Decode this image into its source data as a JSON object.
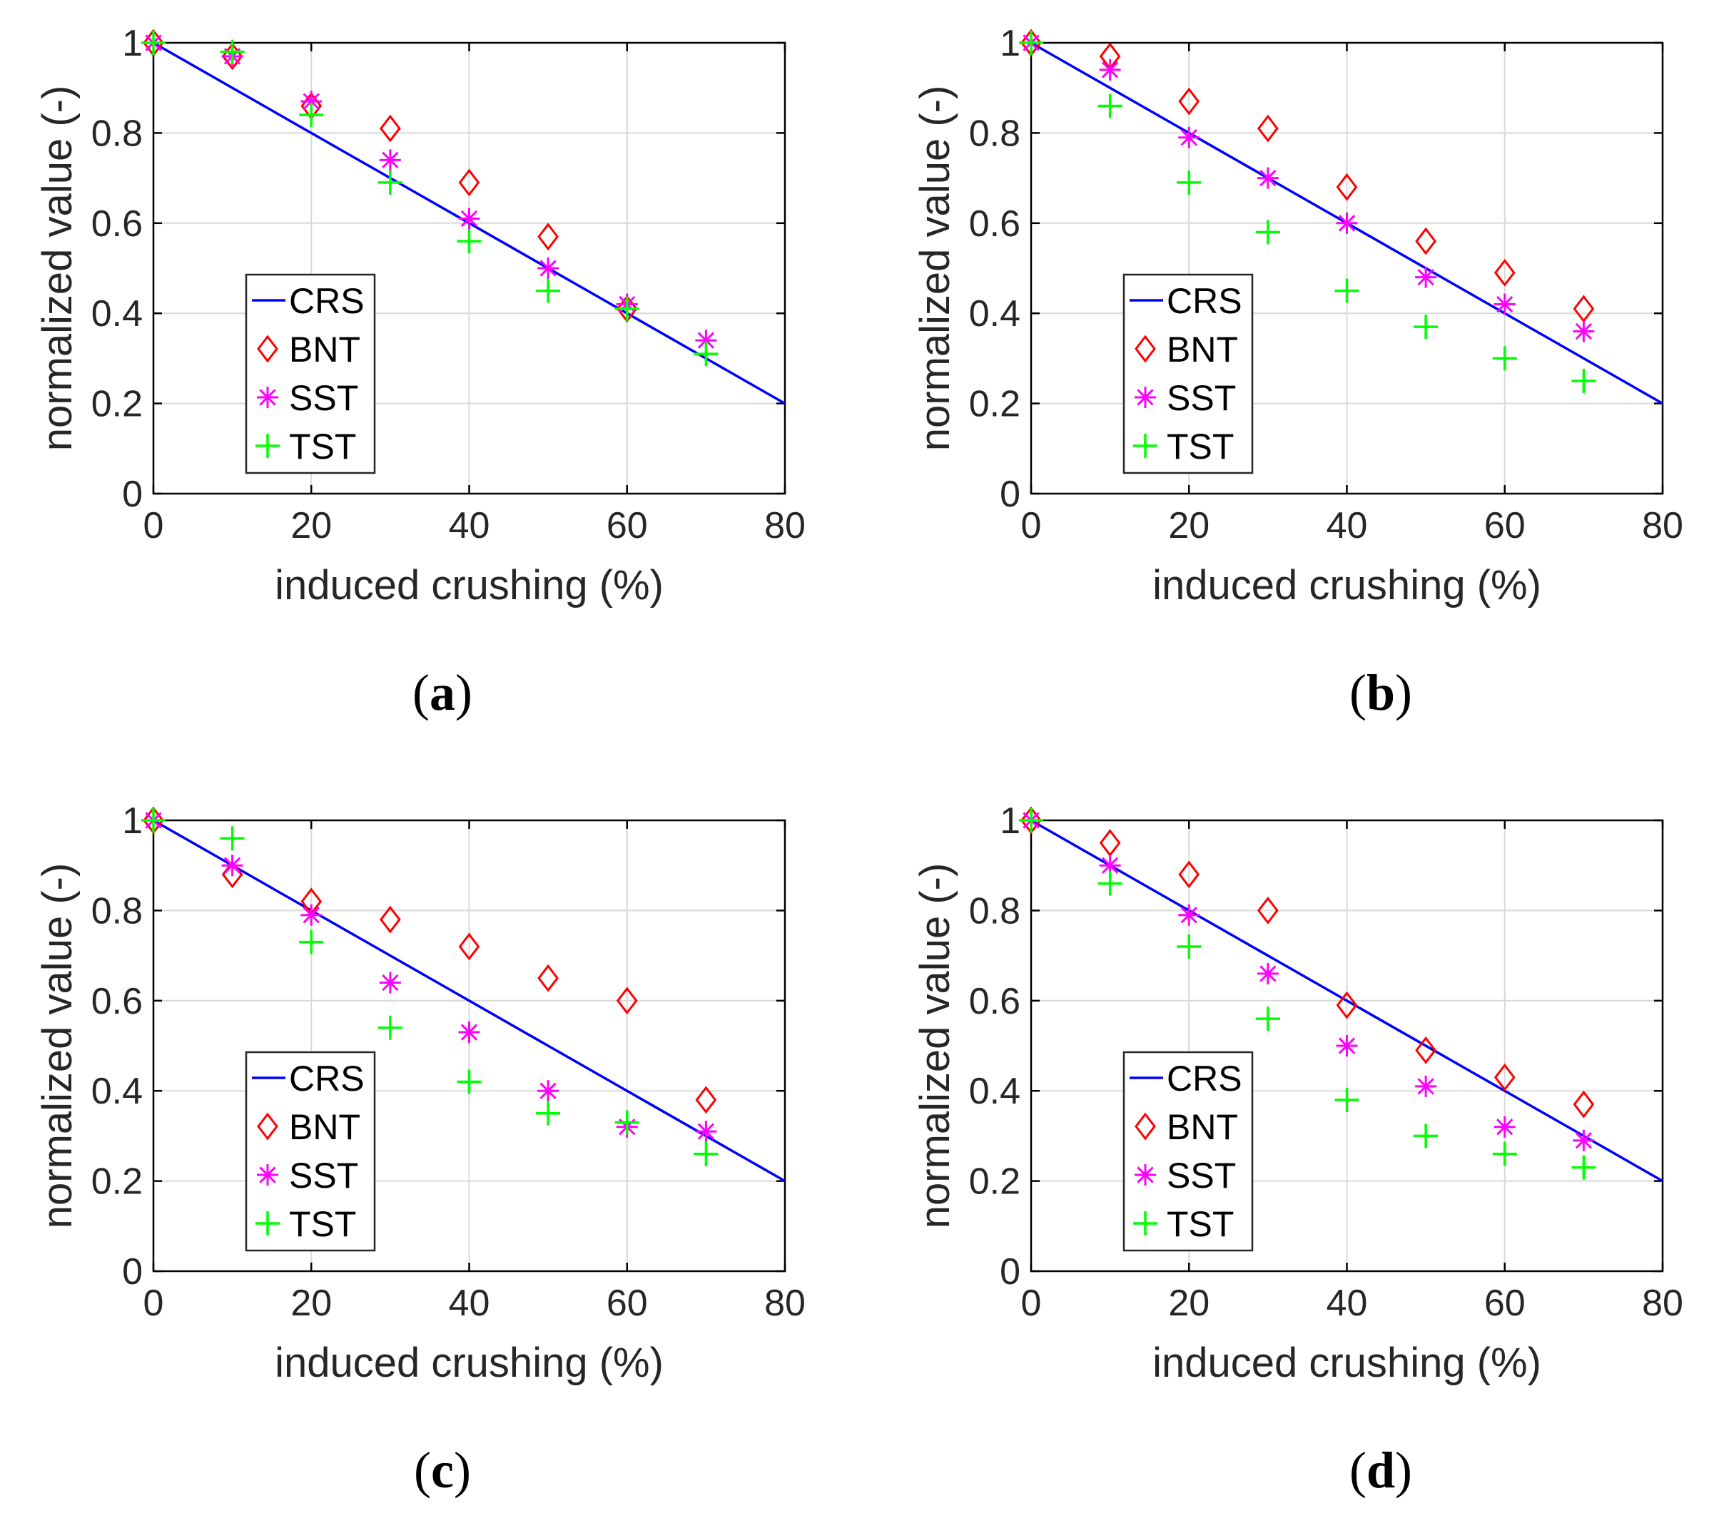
{
  "colors": {
    "CRS": "#0000ff",
    "BNT": "#ff0000",
    "SST": "#ff00ff",
    "TST": "#00ff00",
    "axis": "#000000",
    "grid": "#d9d9d9"
  },
  "legend_symbols": {
    "CRS": "—",
    "BNT": "◇",
    "SST": "✳",
    "TST": "+"
  },
  "chart_data": [
    {
      "id": "a",
      "type": "scatter",
      "label": "a",
      "xlabel": "induced crushing (%)",
      "ylabel": "normalized value (-)",
      "xlim": [
        0,
        80
      ],
      "ylim": [
        0,
        1
      ],
      "xticks": [
        0,
        20,
        40,
        60,
        80
      ],
      "yticks": [
        0,
        0.2,
        0.4,
        0.6,
        0.8,
        1
      ],
      "ytick_labels": [
        "0",
        "0.2",
        "0.4",
        "0.6",
        "0.8",
        "1"
      ],
      "grid": true,
      "legend_position": "lower-left",
      "series": [
        {
          "name": "CRS",
          "style": "line",
          "x": [
            0,
            80
          ],
          "y": [
            1,
            0.2
          ]
        },
        {
          "name": "BNT",
          "style": "diamond",
          "x": [
            0,
            10,
            20,
            30,
            40,
            50,
            60
          ],
          "y": [
            1.0,
            0.97,
            0.86,
            0.81,
            0.69,
            0.57,
            0.41
          ]
        },
        {
          "name": "SST",
          "style": "asterisk",
          "x": [
            0,
            10,
            20,
            30,
            40,
            50,
            60,
            70
          ],
          "y": [
            1.0,
            0.97,
            0.87,
            0.74,
            0.61,
            0.5,
            0.42,
            0.34
          ]
        },
        {
          "name": "TST",
          "style": "plus",
          "x": [
            0,
            10,
            20,
            30,
            40,
            50,
            60,
            70
          ],
          "y": [
            1.0,
            0.98,
            0.84,
            0.69,
            0.56,
            0.45,
            0.41,
            0.31
          ]
        }
      ]
    },
    {
      "id": "b",
      "type": "scatter",
      "label": "b",
      "xlabel": "induced crushing (%)",
      "ylabel": "normalized value (-)",
      "xlim": [
        0,
        80
      ],
      "ylim": [
        0,
        1
      ],
      "xticks": [
        0,
        20,
        40,
        60,
        80
      ],
      "yticks": [
        0,
        0.2,
        0.4,
        0.6,
        0.8,
        1
      ],
      "ytick_labels": [
        "0",
        "0.2",
        "0.4",
        "0.6",
        "0.8",
        "1"
      ],
      "grid": true,
      "legend_position": "lower-left",
      "series": [
        {
          "name": "CRS",
          "style": "line",
          "x": [
            0,
            80
          ],
          "y": [
            1,
            0.2
          ]
        },
        {
          "name": "BNT",
          "style": "diamond",
          "x": [
            0,
            10,
            20,
            30,
            40,
            50,
            60,
            70
          ],
          "y": [
            1.0,
            0.97,
            0.87,
            0.81,
            0.68,
            0.56,
            0.49,
            0.41
          ]
        },
        {
          "name": "SST",
          "style": "asterisk",
          "x": [
            0,
            10,
            20,
            30,
            40,
            50,
            60,
            70
          ],
          "y": [
            1.0,
            0.94,
            0.79,
            0.7,
            0.6,
            0.48,
            0.42,
            0.36
          ]
        },
        {
          "name": "TST",
          "style": "plus",
          "x": [
            0,
            10,
            20,
            30,
            40,
            50,
            60,
            70
          ],
          "y": [
            1.0,
            0.86,
            0.69,
            0.58,
            0.45,
            0.37,
            0.3,
            0.25
          ]
        }
      ]
    },
    {
      "id": "c",
      "type": "scatter",
      "label": "c",
      "xlabel": "induced crushing (%)",
      "ylabel": "normalized value (-)",
      "xlim": [
        0,
        80
      ],
      "ylim": [
        0,
        1
      ],
      "xticks": [
        0,
        20,
        40,
        60,
        80
      ],
      "yticks": [
        0,
        0.2,
        0.4,
        0.6,
        0.8,
        1
      ],
      "ytick_labels": [
        "0",
        "0.2",
        "0.4",
        "0.6",
        "0.8",
        "1"
      ],
      "grid": true,
      "legend_position": "lower-left",
      "series": [
        {
          "name": "CRS",
          "style": "line",
          "x": [
            0,
            80
          ],
          "y": [
            1,
            0.2
          ]
        },
        {
          "name": "BNT",
          "style": "diamond",
          "x": [
            0,
            10,
            20,
            30,
            40,
            50,
            60,
            70
          ],
          "y": [
            1.0,
            0.88,
            0.82,
            0.78,
            0.72,
            0.65,
            0.6,
            0.38
          ]
        },
        {
          "name": "SST",
          "style": "asterisk",
          "x": [
            0,
            10,
            20,
            30,
            40,
            50,
            60,
            70
          ],
          "y": [
            1.0,
            0.9,
            0.79,
            0.64,
            0.53,
            0.4,
            0.32,
            0.31
          ]
        },
        {
          "name": "TST",
          "style": "plus",
          "x": [
            0,
            10,
            20,
            30,
            40,
            50,
            60,
            70
          ],
          "y": [
            1.0,
            0.96,
            0.73,
            0.54,
            0.42,
            0.35,
            0.33,
            0.26
          ]
        }
      ]
    },
    {
      "id": "d",
      "type": "scatter",
      "label": "d",
      "xlabel": "induced crushing (%)",
      "ylabel": "normalized value (-)",
      "xlim": [
        0,
        80
      ],
      "ylim": [
        0,
        1
      ],
      "xticks": [
        0,
        20,
        40,
        60,
        80
      ],
      "yticks": [
        0,
        0.2,
        0.4,
        0.6,
        0.8,
        1
      ],
      "ytick_labels": [
        "0",
        "0.2",
        "0.4",
        "0.6",
        "0.8",
        "1"
      ],
      "grid": true,
      "legend_position": "lower-left",
      "series": [
        {
          "name": "CRS",
          "style": "line",
          "x": [
            0,
            80
          ],
          "y": [
            1,
            0.2
          ]
        },
        {
          "name": "BNT",
          "style": "diamond",
          "x": [
            0,
            10,
            20,
            30,
            40,
            50,
            60,
            70
          ],
          "y": [
            1.0,
            0.95,
            0.88,
            0.8,
            0.59,
            0.49,
            0.43,
            0.37
          ]
        },
        {
          "name": "SST",
          "style": "asterisk",
          "x": [
            0,
            10,
            20,
            30,
            40,
            50,
            60,
            70
          ],
          "y": [
            1.0,
            0.9,
            0.79,
            0.66,
            0.5,
            0.41,
            0.32,
            0.29
          ]
        },
        {
          "name": "TST",
          "style": "plus",
          "x": [
            0,
            10,
            20,
            30,
            40,
            50,
            60,
            70
          ],
          "y": [
            1.0,
            0.86,
            0.72,
            0.56,
            0.38,
            0.3,
            0.26,
            0.23
          ]
        }
      ]
    }
  ]
}
